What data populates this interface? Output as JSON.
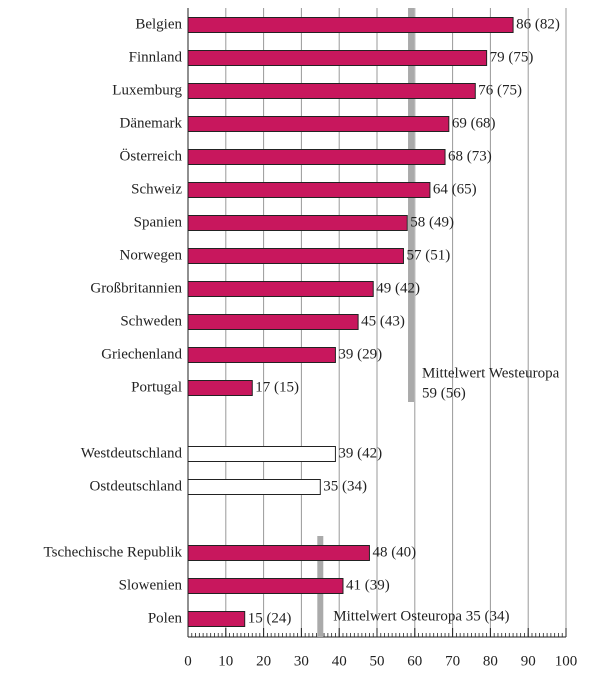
{
  "chart_data": {
    "type": "hbar",
    "categories": [
      "Belgien",
      "Finnland",
      "Luxemburg",
      "Dänemark",
      "Österreich",
      "Schweiz",
      "Spanien",
      "Norwegen",
      "Großbritannien",
      "Schweden",
      "Griechenland",
      "Portugal",
      null,
      "Westdeutschland",
      "Ostdeutschland",
      null,
      "Tschechische Republik",
      "Slowenien",
      "Polen"
    ],
    "values": [
      86,
      79,
      76,
      69,
      68,
      64,
      58,
      57,
      49,
      45,
      39,
      17,
      null,
      39,
      35,
      null,
      48,
      41,
      15
    ],
    "value_labels": [
      "86 (82)",
      "79 (75)",
      "76 (75)",
      "69 (68)",
      "68 (73)",
      "64 (65)",
      "58 (49)",
      "57 (51)",
      "49 (42)",
      "45 (43)",
      "39 (29)",
      "17 (15)",
      null,
      "39 (42)",
      "35 (34)",
      null,
      "48 (40)",
      "41 (39)",
      "15 (24)"
    ],
    "colors": [
      "#c8175d",
      "#c8175d",
      "#c8175d",
      "#c8175d",
      "#c8175d",
      "#c8175d",
      "#c8175d",
      "#c8175d",
      "#c8175d",
      "#c8175d",
      "#c8175d",
      "#c8175d",
      null,
      "#ffffff",
      "#ffffff",
      null,
      "#c8175d",
      "#c8175d",
      "#c8175d"
    ],
    "xlim": [
      0,
      100
    ],
    "xticks": [
      0,
      10,
      20,
      30,
      40,
      50,
      60,
      70,
      80,
      90,
      100
    ],
    "minor_tick_step": 1,
    "grid": true,
    "reference_lines": [
      {
        "value": 59,
        "from": "Belgien",
        "to": "Portugal",
        "label": [
          "Mittelwert Westeuropa",
          "59 (56)"
        ]
      },
      {
        "value": 35,
        "from": "Tschechische Republik",
        "to": "Polen",
        "label": [
          "Mittelwert Osteuropa 35 (34)"
        ]
      }
    ]
  }
}
